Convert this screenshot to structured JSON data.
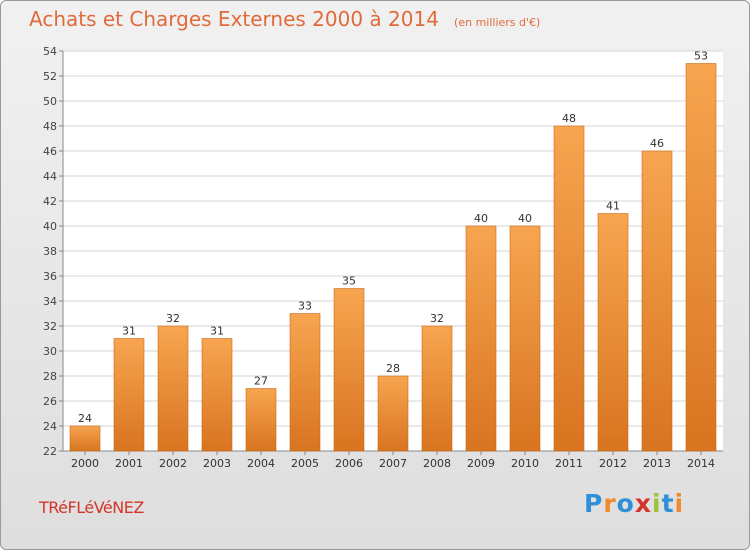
{
  "chart_data": {
    "type": "bar",
    "title": "Achats et Charges Externes 2000 à 2014",
    "subtitle": "(en milliers d'€)",
    "categories": [
      "2000",
      "2001",
      "2002",
      "2003",
      "2004",
      "2005",
      "2006",
      "2007",
      "2008",
      "2009",
      "2010",
      "2011",
      "2012",
      "2013",
      "2014"
    ],
    "values": [
      24,
      31,
      32,
      31,
      27,
      33,
      35,
      28,
      32,
      40,
      40,
      48,
      41,
      46,
      53
    ],
    "ylim": [
      22,
      54
    ],
    "yticks": [
      22,
      24,
      26,
      28,
      30,
      32,
      34,
      36,
      38,
      40,
      42,
      44,
      46,
      48,
      50,
      52,
      54
    ],
    "grid": true,
    "bar_color": "#f08a2c"
  },
  "town_label": "TRéFLéVéNEZ",
  "logo_text": "Proxiti",
  "logo_colors": [
    "#2f8fd8",
    "#f08a2c",
    "#2f8fd8",
    "#d4342a",
    "#9ac43a",
    "#2f8fd8",
    "#f08a2c"
  ]
}
